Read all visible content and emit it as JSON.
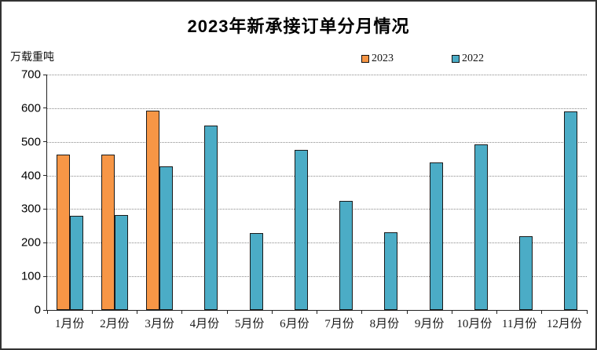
{
  "title": "2023年新承接订单分月情况",
  "y_axis_unit": "万载重吨",
  "legend": {
    "items": [
      {
        "label": "2023",
        "color": "#F79646"
      },
      {
        "label": "2022",
        "color": "#4BACC6"
      }
    ]
  },
  "colors": {
    "bar_2023": "#F79646",
    "bar_2022": "#4BACC6",
    "bar_border": "#1a1a1a",
    "gridline": "#8a8a8a",
    "axis": "#222222"
  },
  "chart_data": {
    "type": "bar",
    "title": "2023年新承接订单分月情况",
    "xlabel": "",
    "ylabel": "万载重吨",
    "ylim": [
      0,
      700
    ],
    "yticks": [
      0,
      100,
      200,
      300,
      400,
      500,
      600,
      700
    ],
    "grid": true,
    "legend_position": "top",
    "categories": [
      "1月份",
      "2月份",
      "3月份",
      "4月份",
      "5月份",
      "6月份",
      "7月份",
      "8月份",
      "9月份",
      "10月份",
      "11月份",
      "12月份"
    ],
    "series": [
      {
        "name": "2023",
        "color": "#F79646",
        "values": [
          461,
          463,
          592,
          null,
          null,
          null,
          null,
          null,
          null,
          null,
          null,
          null
        ]
      },
      {
        "name": "2022",
        "color": "#4BACC6",
        "values": [
          281,
          283,
          428,
          548,
          229,
          477,
          325,
          231,
          439,
          492,
          219,
          590
        ]
      }
    ]
  }
}
